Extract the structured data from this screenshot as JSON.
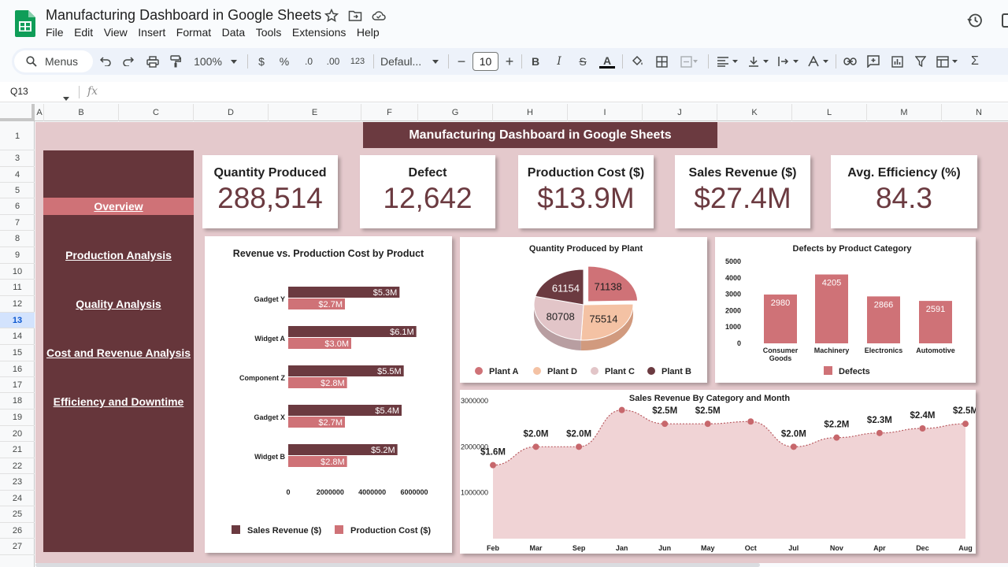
{
  "app": {
    "doc_title": "Manufacturing Dashboard in Google Sheets",
    "menu": [
      "File",
      "Edit",
      "View",
      "Insert",
      "Format",
      "Data",
      "Tools",
      "Extensions",
      "Help"
    ]
  },
  "toolbar": {
    "menus_label": "Menus",
    "zoom": "100%",
    "currency": "$",
    "percent": "%",
    "dec_decrease": ".0",
    "dec_increase": ".00",
    "number_format": "123",
    "font": "Defaul...",
    "font_size": "10",
    "minus": "−",
    "plus": "+",
    "bold": "B",
    "italic": "I",
    "strike": "S",
    "text_color": "A",
    "sum": "Σ"
  },
  "formula_bar": {
    "cell_ref": "Q13",
    "fx": "fx"
  },
  "grid": {
    "columns": [
      "A",
      "B",
      "C",
      "D",
      "E",
      "F",
      "G",
      "H",
      "I",
      "J",
      "K",
      "L",
      "M",
      "N"
    ],
    "rows": [
      "1",
      "3",
      "4",
      "5",
      "6",
      "7",
      "8",
      "9",
      "10",
      "11",
      "12",
      "13",
      "14",
      "15",
      "16",
      "17",
      "18",
      "19",
      "20",
      "21",
      "22",
      "23",
      "24",
      "25",
      "26",
      "27"
    ],
    "selected_row": "13"
  },
  "dashboard": {
    "title": "Manufacturing Dashboard in Google Sheets",
    "nav": [
      "Overview",
      "Production Analysis",
      "Quality Analysis",
      "Cost and Revenue Analysis",
      "Efficiency and Downtime"
    ],
    "kpis": [
      {
        "label": "Quantity Produced",
        "value": "288,514"
      },
      {
        "label": "Defect",
        "value": "12,642"
      },
      {
        "label": "Production Cost ($)",
        "value": "$13.9M"
      },
      {
        "label": "Sales Revenue ($)",
        "value": "$27.4M"
      },
      {
        "label": "Avg. Efficiency (%)",
        "value": "84.3"
      }
    ]
  },
  "colors": {
    "dark": "#6b3a40",
    "pink": "#cf7277",
    "peach": "#f4c2a4",
    "light": "#e2c5c8",
    "bg": "#e4c9cc"
  },
  "chart_data": [
    {
      "type": "bar",
      "title": "Revenue vs. Production Cost by Product",
      "orientation": "horizontal",
      "categories": [
        "Gadget Y",
        "Widget A",
        "Component Z",
        "Gadget X",
        "Widget B"
      ],
      "series": [
        {
          "name": "Sales Revenue ($)",
          "values": [
            5300000,
            6100000,
            5500000,
            5400000,
            5200000
          ],
          "labels": [
            "$5.3M",
            "$6.1M",
            "$5.5M",
            "$5.4M",
            "$5.2M"
          ]
        },
        {
          "name": "Production Cost ($)",
          "values": [
            2700000,
            3000000,
            2800000,
            2700000,
            2800000
          ],
          "labels": [
            "$2.7M",
            "$3.0M",
            "$2.8M",
            "$2.7M",
            "$2.8M"
          ]
        }
      ],
      "xticks": [
        "0",
        "2000000",
        "4000000",
        "6000000"
      ],
      "xlim": [
        0,
        6000000
      ],
      "legend": "bottom"
    },
    {
      "type": "pie",
      "title": "Quantity Produced by Plant",
      "labels": [
        "Plant A",
        "Plant D",
        "Plant C",
        "Plant B"
      ],
      "values": [
        71138,
        75514,
        80708,
        61154
      ],
      "legend": "bottom"
    },
    {
      "type": "bar",
      "title": "Defects by Product Category",
      "categories": [
        "Consumer Goods",
        "Machinery",
        "Electronics",
        "Automotive"
      ],
      "series": [
        {
          "name": "Defects",
          "values": [
            2980,
            4205,
            2866,
            2591
          ]
        }
      ],
      "yticks": [
        "5000",
        "4000",
        "3000",
        "2000",
        "1000",
        "0"
      ],
      "ylim": [
        0,
        5000
      ],
      "legend": "bottom"
    },
    {
      "type": "area",
      "title": "Sales Revenue By Category and Month",
      "x": [
        "Feb",
        "Mar",
        "Sep",
        "Jan",
        "Jun",
        "May",
        "Oct",
        "Jul",
        "Nov",
        "Apr",
        "Dec",
        "Aug"
      ],
      "values": [
        1600000,
        2000000,
        2000000,
        2800000,
        2500000,
        2500000,
        2550000,
        2000000,
        2200000,
        2300000,
        2400000,
        2500000
      ],
      "labels": [
        "$1.6M",
        "$2.0M",
        "$2.0M",
        "",
        "$2.5M",
        "$2.5M",
        "",
        "$2.0M",
        "$2.2M",
        "$2.3M",
        "$2.4M",
        "$2.5M"
      ],
      "yticks": [
        "3000000",
        "2000000",
        "1000000"
      ],
      "ylim": [
        0,
        3000000
      ]
    }
  ]
}
